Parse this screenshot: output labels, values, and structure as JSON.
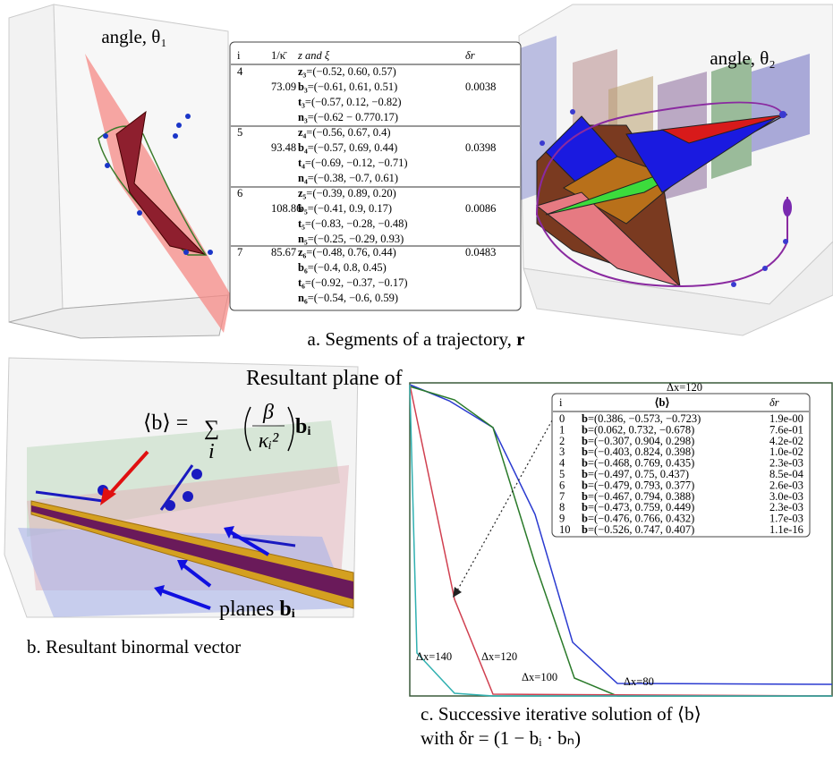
{
  "panel_a": {
    "title_left": "angle, θ₁",
    "title_right": "angle, θ₂",
    "table": {
      "header": [
        "i",
        "1/κ̄",
        "z and ξ",
        "δr"
      ],
      "groups": [
        {
          "i": "4",
          "kappa": "73.09",
          "dr": "0.0038",
          "rows": [
            {
              "sym": "z₃",
              "val": "=(−0.52, 0.60, 0.57)"
            },
            {
              "sym": "b₃",
              "val": "=(−0.61, 0.61, 0.51)"
            },
            {
              "sym": "t₃",
              "val": "=(−0.57, 0.12, −0.82)"
            },
            {
              "sym": "n₃",
              "val": "=(−0.62 − 0.770.17)"
            }
          ]
        },
        {
          "i": "5",
          "kappa": "93.48",
          "dr": "0.0398",
          "rows": [
            {
              "sym": "z₄",
              "val": "=(−0.56, 0.67, 0.4)"
            },
            {
              "sym": "b₄",
              "val": "=(−0.57, 0.69, 0.44)"
            },
            {
              "sym": "t₄",
              "val": "=(−0.69, −0.12, −0.71)"
            },
            {
              "sym": "n₄",
              "val": "=(−0.38, −0.7, 0.61)"
            }
          ]
        },
        {
          "i": "6",
          "kappa": "108.86",
          "dr": "0.0086",
          "rows": [
            {
              "sym": "z₅",
              "val": "=(−0.39, 0.89, 0.20)"
            },
            {
              "sym": "b₅",
              "val": "=(−0.41, 0.9, 0.17)"
            },
            {
              "sym": "t₅",
              "val": "=(−0.83, −0.28, −0.48)"
            },
            {
              "sym": "n₅",
              "val": "=(−0.25, −0.29, 0.93)"
            }
          ]
        },
        {
          "i": "7",
          "kappa": "85.67",
          "dr": "0.0483",
          "rows": [
            {
              "sym": "z₆",
              "val": "=(−0.48, 0.76, 0.44)"
            },
            {
              "sym": "b₆",
              "val": "=(−0.4, 0.8, 0.45)"
            },
            {
              "sym": "t₆",
              "val": "=(−0.92, −0.37, −0.17)"
            },
            {
              "sym": "n₆",
              "val": "=(−0.54, −0.6, 0.59)"
            }
          ]
        }
      ]
    },
    "caption": {
      "text": "a. Segments of a trajectory, ",
      "sym": "r"
    }
  },
  "panel_b": {
    "annotation_line1": "Resultant plane of",
    "formula": {
      "lhs": "⟨b⟩ = ",
      "sum": "∑",
      "index": "i",
      "numerator": "β",
      "denominator": "κᵢ²",
      "tail": "bᵢ"
    },
    "planes_label": {
      "text": "planes ",
      "sym": "bᵢ"
    },
    "caption": "b. Resultant binormal vector"
  },
  "panel_c": {
    "table_title": "Δx=120",
    "table": {
      "header": [
        "i",
        "⟨b⟩",
        "δr"
      ],
      "rows": [
        {
          "i": "0",
          "sym": "b",
          "val": "=(0.386, −0.573, −0.723)",
          "dr": "1.9e-00"
        },
        {
          "i": "1",
          "sym": "b",
          "val": "=(0.062, 0.732, −0.678)",
          "dr": "7.6e-01"
        },
        {
          "i": "2",
          "sym": "b",
          "val": "=(−0.307, 0.904, 0.298)",
          "dr": "4.2e-02"
        },
        {
          "i": "3",
          "sym": "b",
          "val": "=(−0.403, 0.824, 0.398)",
          "dr": "1.0e-02"
        },
        {
          "i": "4",
          "sym": "b",
          "val": "=(−0.468, 0.769, 0.435)",
          "dr": "2.3e-03"
        },
        {
          "i": "5",
          "sym": "b",
          "val": "=(−0.497, 0.75, 0.437)",
          "dr": "8.5e-04"
        },
        {
          "i": "6",
          "sym": "b",
          "val": "=(−0.479, 0.793, 0.377)",
          "dr": "2.6e-03"
        },
        {
          "i": "7",
          "sym": "b",
          "val": "=(−0.467, 0.794, 0.388)",
          "dr": "3.0e-03"
        },
        {
          "i": "8",
          "sym": "b",
          "val": "=(−0.473, 0.759, 0.449)",
          "dr": "2.3e-03"
        },
        {
          "i": "9",
          "sym": "b",
          "val": "=(−0.476, 0.766, 0.432)",
          "dr": "1.7e-03"
        },
        {
          "i": "10",
          "sym": "b",
          "val": "=(−0.526, 0.747, 0.407)",
          "dr": "1.1e-16"
        }
      ]
    },
    "curve_labels": [
      "Δx=140",
      "Δx=120",
      "Δx=100",
      "Δx=80"
    ],
    "caption_line1": "c. Successive iterative solution of ⟨b⟩",
    "caption_line2": "with δr = (1 − bᵢ · bₙ)"
  }
}
